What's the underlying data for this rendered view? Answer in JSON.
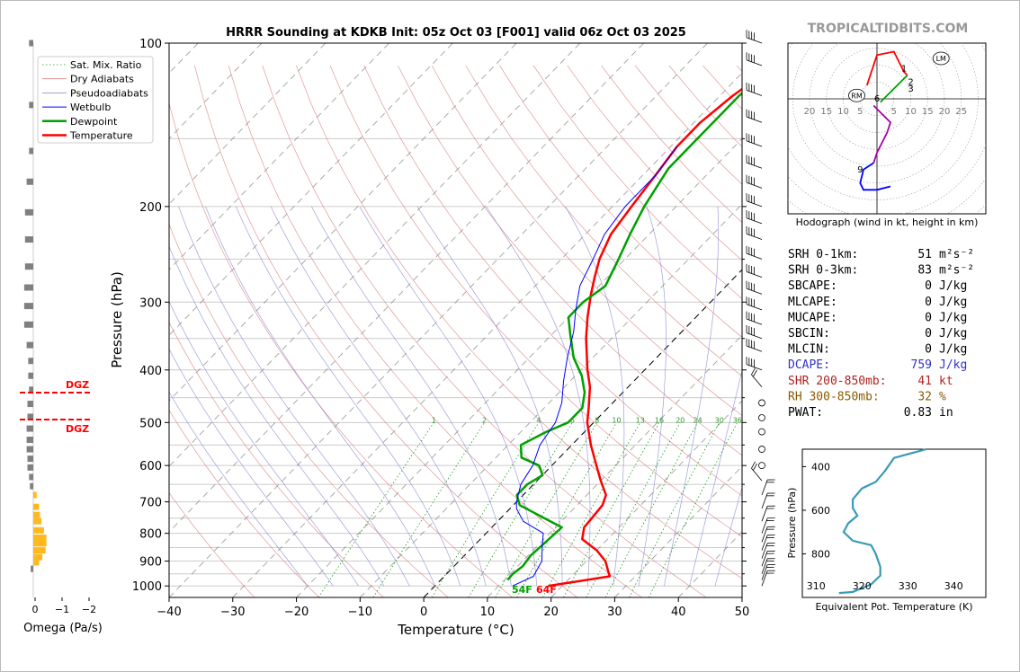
{
  "skewt": {
    "title": "HRRR Sounding at KDKB Init: 05z Oct 03 [F001] valid 06z Oct 03 2025",
    "xlabel": "Temperature (°C)",
    "ylabel": "Pressure (hPa)",
    "xticks": [
      "−40",
      "−30",
      "−20",
      "−10",
      "0",
      "10",
      "20",
      "30",
      "40",
      "50"
    ],
    "yticks": [
      "100",
      "200",
      "300",
      "400",
      "500",
      "600",
      "700",
      "800",
      "900",
      "1000"
    ],
    "surface_dewpoint_label": "54F",
    "surface_temp_label": "64F",
    "mixing_ratio_labels": [
      "1",
      "2",
      "4",
      "6",
      "8",
      "10",
      "13",
      "16",
      "20",
      "24",
      "30",
      "36"
    ],
    "legend": [
      "Sat. Mix. Ratio",
      "Dry Adiabats",
      "Pseudoadiabats",
      "Wetbulb",
      "Dewpoint",
      "Temperature"
    ]
  },
  "chart_data": [
    {
      "type": "line",
      "name": "skew-t",
      "xlim": [
        -40,
        50
      ],
      "ylim": [
        1050,
        100
      ],
      "y_scale": "log",
      "series": [
        {
          "name": "Temperature",
          "color": "#ff0000",
          "points": [
            [
              17.8,
              1000
            ],
            [
              26,
              960
            ],
            [
              25,
              940
            ],
            [
              23,
              900
            ],
            [
              20,
              860
            ],
            [
              16,
              820
            ],
            [
              14.5,
              780
            ],
            [
              14.3,
              750
            ],
            [
              14,
              710
            ],
            [
              13,
              680
            ],
            [
              10,
              640
            ],
            [
              7,
              600
            ],
            [
              3,
              550
            ],
            [
              -1,
              500
            ],
            [
              -3,
              470
            ],
            [
              -6,
              430
            ],
            [
              -9,
              400
            ],
            [
              -14,
              350
            ],
            [
              -17,
              320
            ],
            [
              -20,
              290
            ],
            [
              -22,
              270
            ],
            [
              -24,
              250
            ],
            [
              -26,
              225
            ],
            [
              -27,
              200
            ],
            [
              -28,
              175
            ],
            [
              -29,
              155
            ],
            [
              -29,
              140
            ],
            [
              -28,
              125
            ],
            [
              -26,
              110
            ],
            [
              -22,
              100
            ]
          ]
        },
        {
          "name": "Dewpoint",
          "color": "#00a000",
          "points": [
            [
              10.5,
              975
            ],
            [
              10.4,
              950
            ],
            [
              10.8,
              920
            ],
            [
              10.4,
              880
            ],
            [
              10.7,
              830
            ],
            [
              11,
              780
            ],
            [
              1,
              710
            ],
            [
              -1,
              680
            ],
            [
              -1,
              650
            ],
            [
              0,
              625
            ],
            [
              -2,
              600
            ],
            [
              -6,
              580
            ],
            [
              -8,
              550
            ],
            [
              -6,
              520
            ],
            [
              -4,
              500
            ],
            [
              -4,
              470
            ],
            [
              -6,
              440
            ],
            [
              -9,
              410
            ],
            [
              -13,
              380
            ],
            [
              -17,
              345
            ],
            [
              -20,
              320
            ],
            [
              -20,
              300
            ],
            [
              -19,
              280
            ],
            [
              -21,
              250
            ],
            [
              -23,
              225
            ],
            [
              -25,
              200
            ],
            [
              -27,
              170
            ],
            [
              -27,
              150
            ],
            [
              -27,
              125
            ],
            [
              -26,
              110
            ],
            [
              -23,
              100
            ]
          ]
        },
        {
          "name": "Wetbulb",
          "color": "#0000ff",
          "points": [
            [
              12.2,
              1000
            ],
            [
              14,
              960
            ],
            [
              13,
              900
            ],
            [
              11,
              850
            ],
            [
              9,
              800
            ],
            [
              4,
              760
            ],
            [
              1,
              720
            ],
            [
              0,
              700
            ],
            [
              -2,
              650
            ],
            [
              -3,
              600
            ],
            [
              -5,
              550
            ],
            [
              -6,
              500
            ],
            [
              -8,
              460
            ],
            [
              -11,
              420
            ],
            [
              -14,
              380
            ],
            [
              -17,
              340
            ],
            [
              -20,
              310
            ],
            [
              -23,
              280
            ],
            [
              -25,
              250
            ],
            [
              -27,
              225
            ],
            [
              -28,
              200
            ],
            [
              -28,
              175
            ],
            [
              -29,
              155
            ]
          ]
        }
      ]
    },
    {
      "type": "line",
      "name": "hodograph",
      "title": "Hodograph (wind in kt, height in km)",
      "xticks": [
        "20",
        "15",
        "10",
        "5",
        "5",
        "10",
        "15",
        "20",
        "25"
      ],
      "height_labels": [
        "1",
        "2",
        "3",
        "6",
        "9"
      ],
      "markers": [
        "LM",
        "RM"
      ],
      "series": [
        {
          "name": "0-1km",
          "color": "#ff0000",
          "points": [
            [
              -3,
              4
            ],
            [
              0,
              13
            ],
            [
              5,
              14
            ],
            [
              8,
              8
            ],
            [
              9,
              7
            ]
          ]
        },
        {
          "name": "1-3km",
          "color": "#00a000",
          "points": [
            [
              9,
              7
            ],
            [
              5,
              3
            ],
            [
              2,
              0
            ],
            [
              1,
              -1
            ]
          ]
        },
        {
          "name": "3-6km",
          "color": "#aa00aa",
          "points": [
            [
              -1,
              -2
            ],
            [
              2,
              -5
            ],
            [
              4,
              -7
            ],
            [
              3,
              -10
            ],
            [
              0,
              -16
            ],
            [
              -1,
              -19
            ]
          ]
        },
        {
          "name": "6-9km",
          "color": "#0000ff",
          "points": [
            [
              -1,
              -19
            ],
            [
              -4,
              -21
            ],
            [
              -5,
              -25
            ],
            [
              -4,
              -27
            ],
            [
              0,
              -27
            ],
            [
              4,
              -26
            ]
          ]
        }
      ]
    },
    {
      "type": "line",
      "name": "theta-e",
      "xlabel": "Equivalent Pot. Temperature (K)",
      "ylabel": "Pressure (hPa)",
      "xticks": [
        "310",
        "320",
        "330",
        "340"
      ],
      "yticks": [
        "400",
        "600",
        "800"
      ],
      "xlim": [
        307,
        347
      ],
      "ylim": [
        1000,
        320
      ],
      "series": [
        {
          "name": "theta-e",
          "color": "#3a9bb5",
          "points": [
            [
              334,
              320
            ],
            [
              327,
              360
            ],
            [
              325,
              420
            ],
            [
              323,
              470
            ],
            [
              320,
              500
            ],
            [
              318,
              550
            ],
            [
              318,
              590
            ],
            [
              319,
              625
            ],
            [
              317,
              660
            ],
            [
              316,
              700
            ],
            [
              318,
              740
            ],
            [
              322,
              760
            ],
            [
              323,
              800
            ],
            [
              324,
              860
            ],
            [
              324,
              900
            ],
            [
              322,
              940
            ],
            [
              318,
              975
            ],
            [
              315,
              980
            ]
          ]
        }
      ]
    },
    {
      "type": "bar",
      "name": "omega",
      "xlabel": "Omega (Pa/s)",
      "xticks": [
        "0",
        "−1",
        "−2"
      ],
      "dgz_label": "DGZ",
      "points": [
        [
          0.3,
          100
        ],
        [
          0.3,
          130
        ],
        [
          0.3,
          158
        ],
        [
          0.6,
          180
        ],
        [
          0.8,
          205
        ],
        [
          0.8,
          230
        ],
        [
          0.8,
          258
        ],
        [
          0.9,
          282
        ],
        [
          0.9,
          305
        ],
        [
          0.9,
          330
        ],
        [
          0.6,
          360
        ],
        [
          0.4,
          385
        ],
        [
          0.4,
          410
        ],
        [
          0.3,
          435
        ],
        [
          0.5,
          462
        ],
        [
          0.5,
          488
        ],
        [
          0.6,
          513
        ],
        [
          0.6,
          538
        ],
        [
          0.6,
          560
        ],
        [
          0.5,
          583
        ],
        [
          0.5,
          605
        ],
        [
          0.3,
          630
        ],
        [
          0.2,
          655
        ],
        [
          -0.2,
          680
        ],
        [
          -0.5,
          715
        ],
        [
          -0.6,
          740
        ],
        [
          -0.8,
          760
        ],
        [
          -1.1,
          790
        ],
        [
          -1.4,
          815
        ],
        [
          -1.4,
          835
        ],
        [
          -1.3,
          860
        ],
        [
          -0.9,
          885
        ],
        [
          -0.5,
          905
        ],
        [
          0.1,
          930
        ]
      ]
    }
  ],
  "stats": [
    {
      "label": "SRH 0-1km:",
      "value": "51",
      "unit": "m²s⁻²",
      "color": "#000000"
    },
    {
      "label": "SRH 0-3km:",
      "value": "83",
      "unit": "m²s⁻²",
      "color": "#000000"
    },
    {
      "label": "SBCAPE:",
      "value": "0",
      "unit": "J/kg",
      "color": "#000000"
    },
    {
      "label": "MLCAPE:",
      "value": "0",
      "unit": "J/kg",
      "color": "#000000"
    },
    {
      "label": "MUCAPE:",
      "value": "0",
      "unit": "J/kg",
      "color": "#000000"
    },
    {
      "label": "SBCIN:",
      "value": "0",
      "unit": "J/kg",
      "color": "#000000"
    },
    {
      "label": "MLCIN:",
      "value": "0",
      "unit": "J/kg",
      "color": "#000000"
    },
    {
      "label": "DCAPE:",
      "value": "759",
      "unit": "J/kg",
      "color": "#3232c8"
    },
    {
      "label": "SHR 200-850mb:",
      "value": "41",
      "unit": "kt",
      "color": "#b22222"
    },
    {
      "label": "RH 300-850mb:",
      "value": "32",
      "unit": "%",
      "color": "#8b5a00"
    },
    {
      "label": "PWAT:",
      "value": "0.83",
      "unit": "in",
      "color": "#000000"
    }
  ],
  "brand": "TROPICALTIDBITS.COM"
}
